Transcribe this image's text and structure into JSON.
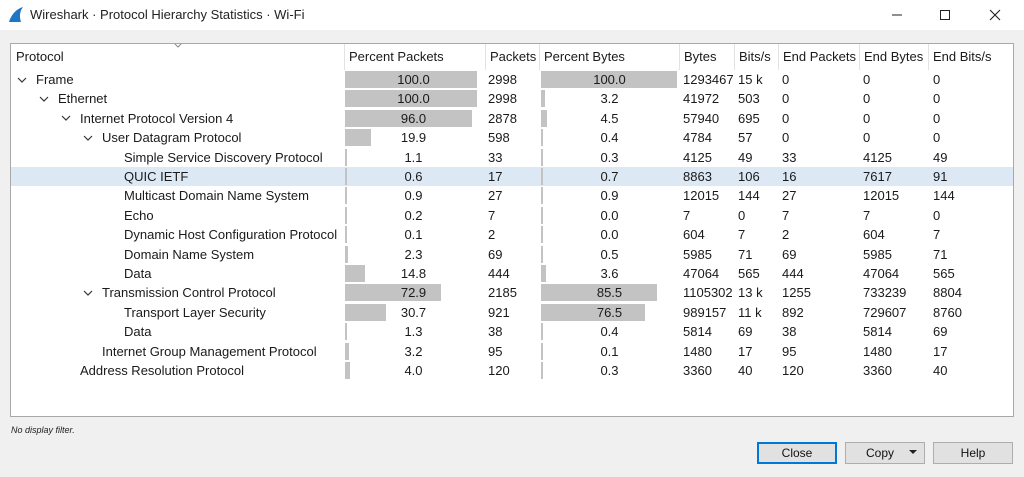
{
  "window": {
    "title": "Wireshark · Protocol Hierarchy Statistics · Wi-Fi",
    "minimize_icon": "minimize-icon",
    "maximize_icon": "maximize-icon",
    "close_icon": "close-icon",
    "app_icon": "wireshark-fin-icon",
    "accent_color": "#1e76c4"
  },
  "table": {
    "columns": [
      "Protocol",
      "Percent Packets",
      "Packets",
      "Percent Bytes",
      "Bytes",
      "Bits/s",
      "End Packets",
      "End Bytes",
      "End Bits/s"
    ],
    "sort_indicator": "chevron-down-icon",
    "selected_row": 5,
    "bar_color": "#c3c3c3",
    "selection_color": "#dce9f5",
    "rows": [
      {
        "protocol": "Frame",
        "level": 0,
        "expanded": true,
        "pct_packets": "100.0",
        "pct_packets_value": 100.0,
        "packets": "2998",
        "pct_bytes": "100.0",
        "pct_bytes_value": 100.0,
        "bytes": "1293467",
        "bits": "15 k",
        "end_packets": "0",
        "end_bytes": "0",
        "end_bits": "0"
      },
      {
        "protocol": "Ethernet",
        "level": 1,
        "expanded": true,
        "pct_packets": "100.0",
        "pct_packets_value": 100.0,
        "packets": "2998",
        "pct_bytes": "3.2",
        "pct_bytes_value": 3.2,
        "bytes": "41972",
        "bits": "503",
        "end_packets": "0",
        "end_bytes": "0",
        "end_bits": "0"
      },
      {
        "protocol": "Internet Protocol Version 4",
        "level": 2,
        "expanded": true,
        "pct_packets": "96.0",
        "pct_packets_value": 96.0,
        "packets": "2878",
        "pct_bytes": "4.5",
        "pct_bytes_value": 4.5,
        "bytes": "57940",
        "bits": "695",
        "end_packets": "0",
        "end_bytes": "0",
        "end_bits": "0"
      },
      {
        "protocol": "User Datagram Protocol",
        "level": 3,
        "expanded": true,
        "pct_packets": "19.9",
        "pct_packets_value": 19.9,
        "packets": "598",
        "pct_bytes": "0.4",
        "pct_bytes_value": 0.4,
        "bytes": "4784",
        "bits": "57",
        "end_packets": "0",
        "end_bytes": "0",
        "end_bits": "0"
      },
      {
        "protocol": "Simple Service Discovery Protocol",
        "level": 4,
        "expanded": null,
        "pct_packets": "1.1",
        "pct_packets_value": 1.1,
        "packets": "33",
        "pct_bytes": "0.3",
        "pct_bytes_value": 0.3,
        "bytes": "4125",
        "bits": "49",
        "end_packets": "33",
        "end_bytes": "4125",
        "end_bits": "49"
      },
      {
        "protocol": "QUIC IETF",
        "level": 4,
        "expanded": null,
        "pct_packets": "0.6",
        "pct_packets_value": 0.6,
        "packets": "17",
        "pct_bytes": "0.7",
        "pct_bytes_value": 0.7,
        "bytes": "8863",
        "bits": "106",
        "end_packets": "16",
        "end_bytes": "7617",
        "end_bits": "91"
      },
      {
        "protocol": "Multicast Domain Name System",
        "level": 4,
        "expanded": null,
        "pct_packets": "0.9",
        "pct_packets_value": 0.9,
        "packets": "27",
        "pct_bytes": "0.9",
        "pct_bytes_value": 0.9,
        "bytes": "12015",
        "bits": "144",
        "end_packets": "27",
        "end_bytes": "12015",
        "end_bits": "144"
      },
      {
        "protocol": "Echo",
        "level": 4,
        "expanded": null,
        "pct_packets": "0.2",
        "pct_packets_value": 0.2,
        "packets": "7",
        "pct_bytes": "0.0",
        "pct_bytes_value": 0.0,
        "bytes": "7",
        "bits": "0",
        "end_packets": "7",
        "end_bytes": "7",
        "end_bits": "0"
      },
      {
        "protocol": "Dynamic Host Configuration Protocol",
        "level": 4,
        "expanded": null,
        "pct_packets": "0.1",
        "pct_packets_value": 0.1,
        "packets": "2",
        "pct_bytes": "0.0",
        "pct_bytes_value": 0.0,
        "bytes": "604",
        "bits": "7",
        "end_packets": "2",
        "end_bytes": "604",
        "end_bits": "7"
      },
      {
        "protocol": "Domain Name System",
        "level": 4,
        "expanded": null,
        "pct_packets": "2.3",
        "pct_packets_value": 2.3,
        "packets": "69",
        "pct_bytes": "0.5",
        "pct_bytes_value": 0.5,
        "bytes": "5985",
        "bits": "71",
        "end_packets": "69",
        "end_bytes": "5985",
        "end_bits": "71"
      },
      {
        "protocol": "Data",
        "level": 4,
        "expanded": null,
        "pct_packets": "14.8",
        "pct_packets_value": 14.8,
        "packets": "444",
        "pct_bytes": "3.6",
        "pct_bytes_value": 3.6,
        "bytes": "47064",
        "bits": "565",
        "end_packets": "444",
        "end_bytes": "47064",
        "end_bits": "565"
      },
      {
        "protocol": "Transmission Control Protocol",
        "level": 3,
        "expanded": true,
        "pct_packets": "72.9",
        "pct_packets_value": 72.9,
        "packets": "2185",
        "pct_bytes": "85.5",
        "pct_bytes_value": 85.5,
        "bytes": "1105302",
        "bits": "13 k",
        "end_packets": "1255",
        "end_bytes": "733239",
        "end_bits": "8804"
      },
      {
        "protocol": "Transport Layer Security",
        "level": 4,
        "expanded": null,
        "pct_packets": "30.7",
        "pct_packets_value": 30.7,
        "packets": "921",
        "pct_bytes": "76.5",
        "pct_bytes_value": 76.5,
        "bytes": "989157",
        "bits": "11 k",
        "end_packets": "892",
        "end_bytes": "729607",
        "end_bits": "8760"
      },
      {
        "protocol": "Data",
        "level": 4,
        "expanded": null,
        "pct_packets": "1.3",
        "pct_packets_value": 1.3,
        "packets": "38",
        "pct_bytes": "0.4",
        "pct_bytes_value": 0.4,
        "bytes": "5814",
        "bits": "69",
        "end_packets": "38",
        "end_bytes": "5814",
        "end_bits": "69"
      },
      {
        "protocol": "Internet Group Management Protocol",
        "level": 3,
        "expanded": null,
        "pct_packets": "3.2",
        "pct_packets_value": 3.2,
        "packets": "95",
        "pct_bytes": "0.1",
        "pct_bytes_value": 0.1,
        "bytes": "1480",
        "bits": "17",
        "end_packets": "95",
        "end_bytes": "1480",
        "end_bits": "17"
      },
      {
        "protocol": "Address Resolution Protocol",
        "level": 2,
        "expanded": null,
        "pct_packets": "4.0",
        "pct_packets_value": 4.0,
        "packets": "120",
        "pct_bytes": "0.3",
        "pct_bytes_value": 0.3,
        "bytes": "3360",
        "bits": "40",
        "end_packets": "120",
        "end_bytes": "3360",
        "end_bits": "40"
      }
    ]
  },
  "status": {
    "filter_text": "No display filter."
  },
  "buttons": {
    "close_label": "Close",
    "copy_label": "Copy",
    "copy_icon": "dropdown-caret-icon",
    "help_label": "Help"
  }
}
